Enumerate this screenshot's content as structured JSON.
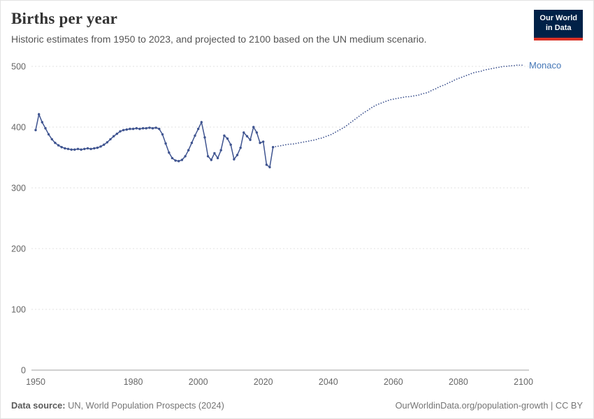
{
  "header": {
    "title": "Births per year",
    "subtitle": "Historic estimates from 1950 to 2023, and projected to 2100 based on the UN medium scenario.",
    "logo": {
      "line1": "Our World",
      "line2": "in Data",
      "bg": "#002147",
      "accent": "#d93025"
    }
  },
  "footer": {
    "source_label": "Data source:",
    "source_text": " UN, World Population Prospects (2024)",
    "credit": "OurWorldinData.org/population-growth | CC BY"
  },
  "chart_data": {
    "type": "line",
    "title": "Births per year",
    "entity": "Monaco",
    "x_range": [
      1950,
      2100
    ],
    "y_range": [
      0,
      500
    ],
    "x_ticks": [
      1950,
      1980,
      2000,
      2020,
      2040,
      2060,
      2080,
      2100
    ],
    "y_ticks": [
      0,
      100,
      200,
      300,
      400,
      500
    ],
    "grid": true,
    "legend_position": "end-of-line-label",
    "line_color": "#3F5490",
    "label_color": "#4577B7",
    "grid_color": "#e2e2e2",
    "axis_color": "#a1a1a1",
    "tick_label_color": "#666666",
    "series": [
      {
        "name": "Monaco (historic estimates)",
        "style": "solid_markers",
        "start_year": 1950,
        "values": [
          395,
          421,
          408,
          398,
          388,
          380,
          374,
          370,
          367,
          365,
          364,
          363,
          363,
          364,
          363,
          364,
          365,
          364,
          365,
          366,
          368,
          371,
          375,
          380,
          385,
          389,
          393,
          395,
          396,
          397,
          397,
          398,
          397,
          398,
          398,
          399,
          398,
          399,
          397,
          388,
          373,
          358,
          349,
          345,
          344,
          346,
          352,
          362,
          374,
          386,
          397,
          408,
          383,
          352,
          346,
          357,
          349,
          362,
          386,
          381,
          371,
          347,
          354,
          366,
          391,
          385,
          379,
          400,
          391,
          374,
          376,
          338,
          334,
          367
        ]
      },
      {
        "name": "Monaco (UN medium projection)",
        "style": "dotted",
        "start_year": 2023,
        "values": [
          367,
          368,
          369,
          370,
          371,
          372,
          372,
          373,
          374,
          375,
          376,
          377,
          378,
          379,
          381,
          382,
          384,
          386,
          388,
          391,
          394,
          397,
          400,
          404,
          408,
          412,
          416,
          420,
          424,
          427,
          431,
          434,
          437,
          439,
          441,
          443,
          445,
          446,
          447,
          448,
          449,
          450,
          450,
          451,
          452,
          453,
          455,
          456,
          458,
          461,
          463,
          466,
          468,
          470,
          473,
          475,
          478,
          480,
          482,
          484,
          486,
          488,
          490,
          491,
          492,
          494,
          495,
          496,
          497,
          498,
          499,
          500,
          500,
          501,
          501,
          502,
          502,
          502
        ]
      }
    ]
  }
}
